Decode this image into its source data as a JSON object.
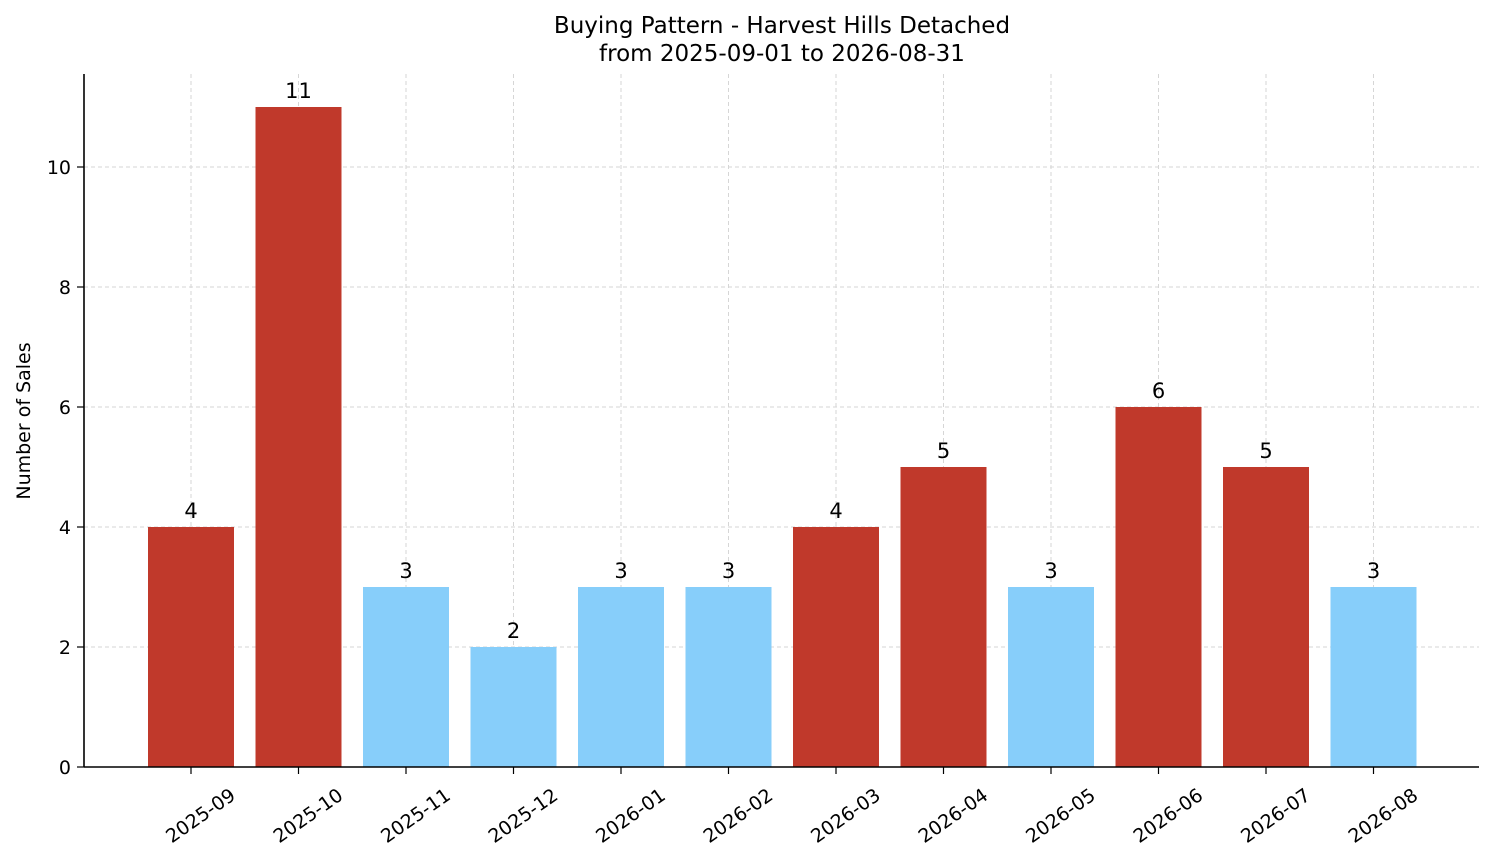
{
  "chart_data": {
    "type": "bar",
    "title": "Buying Pattern - Harvest Hills Detached",
    "subtitle": "from 2025-09-01 to 2026-08-31",
    "xlabel": "",
    "ylabel": "Number of Sales",
    "categories": [
      "2025-09",
      "2025-10",
      "2025-11",
      "2025-12",
      "2026-01",
      "2026-02",
      "2026-03",
      "2026-04",
      "2026-05",
      "2026-06",
      "2026-07",
      "2026-08"
    ],
    "values": [
      4,
      11,
      3,
      2,
      3,
      3,
      4,
      5,
      3,
      6,
      5,
      3
    ],
    "value_labels": [
      "4",
      "11",
      "3",
      "2",
      "3",
      "3",
      "4",
      "5",
      "3",
      "6",
      "5",
      "3"
    ],
    "bar_colors": [
      "#c0392b",
      "#c0392b",
      "#87cefa",
      "#87cefa",
      "#87cefa",
      "#87cefa",
      "#c0392b",
      "#c0392b",
      "#87cefa",
      "#c0392b",
      "#c0392b",
      "#87cefa"
    ],
    "ylim": [
      0,
      11.55
    ],
    "yticks": [
      0,
      2,
      4,
      6,
      8,
      10
    ],
    "ytick_labels": [
      "0",
      "2",
      "4",
      "6",
      "8",
      "10"
    ],
    "grid": true,
    "x_tick_rotation_deg": 35
  }
}
